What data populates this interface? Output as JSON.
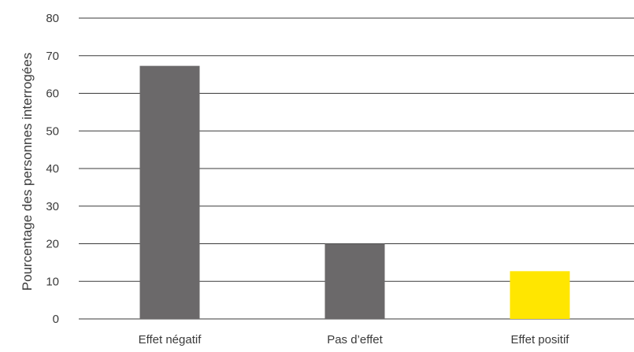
{
  "chart_data": {
    "type": "bar",
    "title": "",
    "xlabel": "",
    "ylabel": "Pourcentage des personnes interrogées",
    "categories": [
      "Effet négatif",
      "Pas d’effet",
      "Effet positif"
    ],
    "values": [
      67.3,
      20.0,
      12.7
    ],
    "bar_colors": [
      "#6b696a",
      "#6b696a",
      "#ffe600"
    ],
    "ylim": [
      0,
      80
    ],
    "yticks": [
      "0",
      "10",
      "20",
      "30",
      "40",
      "50",
      "60",
      "70",
      "80"
    ],
    "grid": true,
    "gridline_color": "#3a3a3a"
  }
}
